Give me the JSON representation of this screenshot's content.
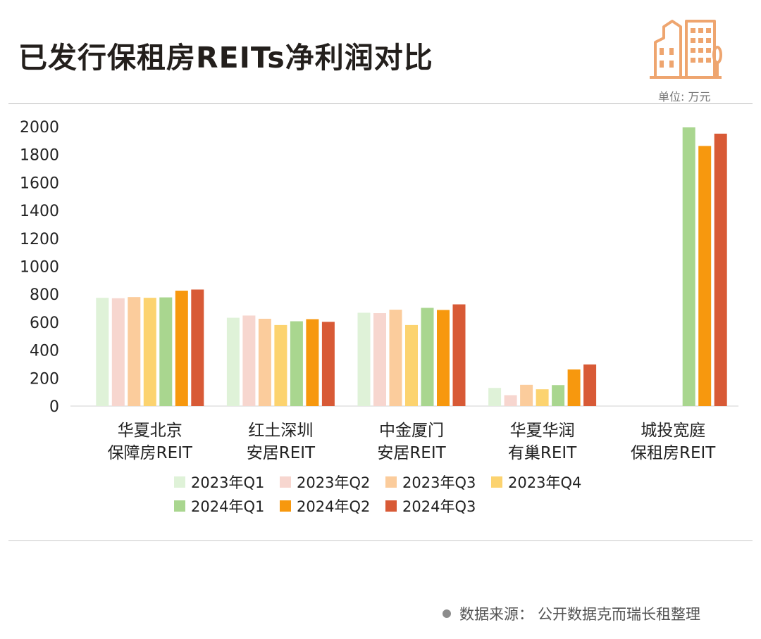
{
  "header": {
    "title": "已发行保租房REITs净利润对比",
    "unit": "单位: 万元"
  },
  "footer": {
    "source_label": "数据来源",
    "source_text": "公开数据克而瑞长租整理"
  },
  "colors": {
    "series": [
      "#dff2d8",
      "#f7d6cf",
      "#fbcc9c",
      "#fcd36f",
      "#a9d68f",
      "#f7980e",
      "#d85a36"
    ],
    "logo": "#eea56f"
  },
  "chart_data": {
    "type": "bar",
    "categories": [
      [
        "华夏北京",
        "保障房REIT"
      ],
      [
        "红土深圳",
        "安居REIT"
      ],
      [
        "中金厦门",
        "安居REIT"
      ],
      [
        "华夏华润",
        "有巢REIT"
      ],
      [
        "城投宽庭",
        "保租房REIT"
      ]
    ],
    "ylim": [
      0,
      2000
    ],
    "yticks": [
      0,
      200,
      400,
      600,
      800,
      1000,
      1200,
      1400,
      1600,
      1800,
      2000
    ],
    "legend_position": "bottom",
    "grid": false,
    "series": [
      {
        "name": "2023年Q1",
        "values": [
          775,
          632,
          668,
          130,
          null
        ]
      },
      {
        "name": "2023年Q2",
        "values": [
          772,
          648,
          665,
          78,
          null
        ]
      },
      {
        "name": "2023年Q3",
        "values": [
          780,
          625,
          690,
          152,
          null
        ]
      },
      {
        "name": "2023年Q4",
        "values": [
          775,
          580,
          580,
          120,
          null
        ]
      },
      {
        "name": "2024年Q1",
        "values": [
          778,
          607,
          703,
          150,
          1995
        ]
      },
      {
        "name": "2024年Q2",
        "values": [
          826,
          622,
          688,
          262,
          1862
        ]
      },
      {
        "name": "2024年Q3",
        "values": [
          834,
          603,
          728,
          298,
          1950
        ]
      }
    ]
  }
}
